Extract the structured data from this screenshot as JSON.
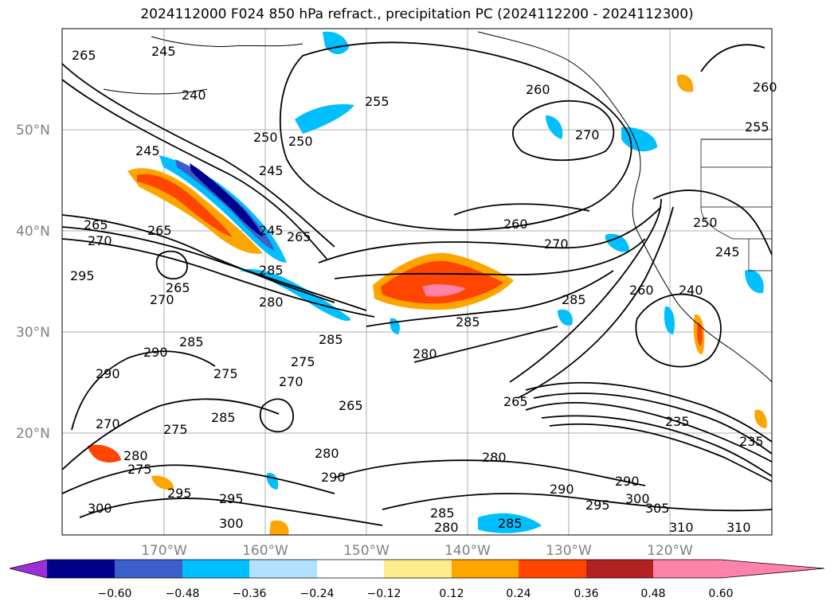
{
  "title": "2024112000 F024 850 hPa refract., precipitation PC (2024112200 - 2024112300)",
  "lat_labels": [
    "50°N",
    "40°N",
    "30°N",
    "20°N"
  ],
  "lon_labels": [
    "170°W",
    "160°W",
    "150°W",
    "140°W",
    "130°W",
    "120°W"
  ],
  "colorbar": {
    "ticks": [
      "−0.60",
      "−0.48",
      "−0.36",
      "−0.24",
      "−0.12",
      "0.12",
      "0.24",
      "0.36",
      "0.48",
      "0.60"
    ],
    "colors": [
      "#9b30d9",
      "#00008b",
      "#3a5fcd",
      "#00bfff",
      "#b0e2ff",
      "#ffffff",
      "#ffec8b",
      "#ffa500",
      "#ff4500",
      "#b22222",
      "#ff82ab"
    ]
  },
  "contour_labels": [
    "265",
    "245",
    "240",
    "255",
    "250",
    "250",
    "260",
    "270",
    "255",
    "260",
    "245",
    "245",
    "265",
    "270",
    "265",
    "245",
    "265",
    "285",
    "295",
    "265",
    "270",
    "280",
    "260",
    "285",
    "270",
    "280",
    "285",
    "260",
    "250",
    "245",
    "240",
    "285",
    "275",
    "290",
    "290",
    "285",
    "275",
    "270",
    "265",
    "265",
    "270",
    "275",
    "285",
    "280",
    "275",
    "295",
    "295",
    "300",
    "280",
    "290",
    "280",
    "290",
    "290",
    "295",
    "300",
    "305",
    "310",
    "310",
    "235",
    "235",
    "300",
    "280",
    "285",
    "285"
  ]
}
